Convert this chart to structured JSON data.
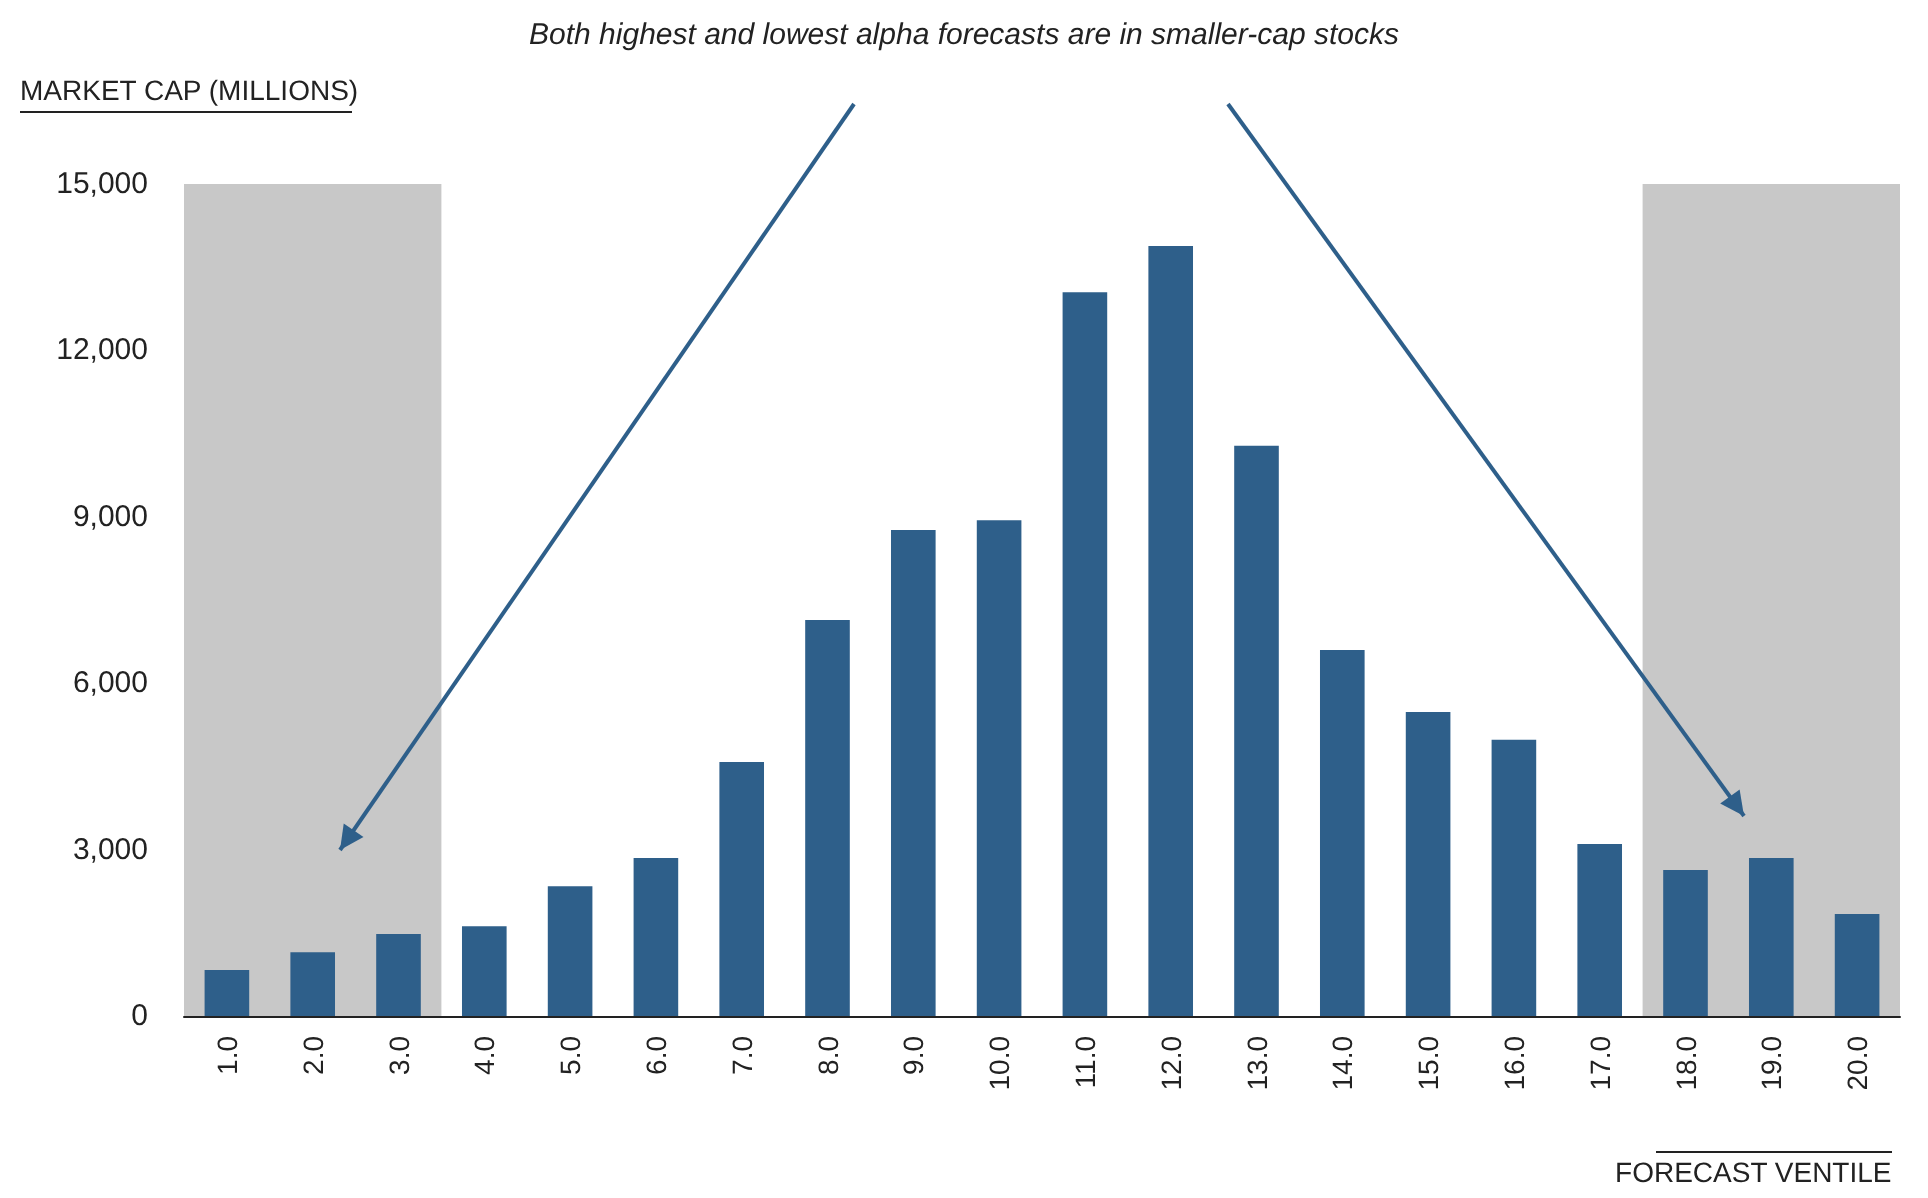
{
  "chart_data": {
    "type": "bar",
    "ylabel": "MARKET CAP (MILLIONS)",
    "xlabel": "FORECAST VENTILE",
    "annotations": [
      "Both highest and lowest alpha forecasts are in smaller-cap stocks"
    ],
    "categories": [
      "1.0",
      "2.0",
      "3.0",
      "4.0",
      "5.0",
      "6.0",
      "7.0",
      "8.0",
      "9.0",
      "10.0",
      "11.0",
      "12.0",
      "13.0",
      "14.0",
      "15.0",
      "16.0",
      "17.0",
      "18.0",
      "19.0",
      "20.0"
    ],
    "values": [
      830,
      1150,
      1480,
      1620,
      2340,
      2850,
      4580,
      7140,
      8760,
      8940,
      13050,
      13880,
      10280,
      6600,
      5480,
      4980,
      3100,
      2630,
      2850,
      1840
    ],
    "color": "#2e5f8a",
    "ylim": [
      0,
      15000
    ],
    "yticks": [
      0,
      {
        "value": 3000,
        "label": "3,000"
      },
      {
        "value": 6000,
        "label": "6,000"
      },
      {
        "value": 9000,
        "label": "9,000"
      },
      {
        "value": 12000,
        "label": "12,000"
      },
      {
        "value": 15000,
        "label": "15,000"
      }
    ],
    "bands": [
      {
        "axis": "x",
        "from": "1.0",
        "to": "3.0",
        "color": "#c8c8c8"
      },
      {
        "axis": "x",
        "from": "18.0",
        "to": "20.0",
        "color": "#c8c8c8"
      }
    ],
    "grid": false
  }
}
